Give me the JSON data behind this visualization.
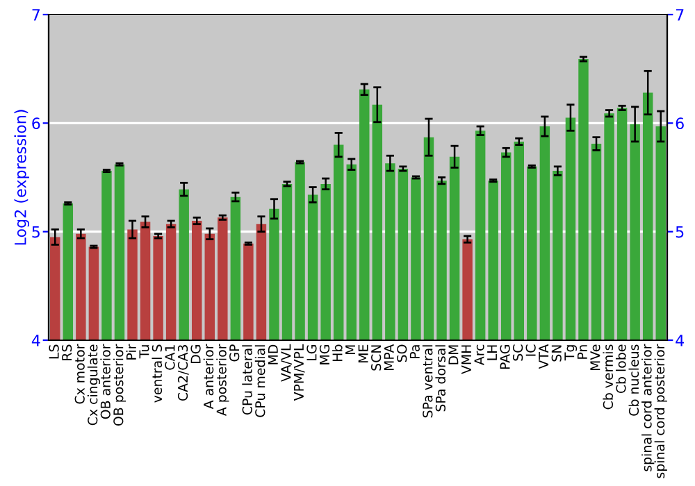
{
  "chart_data": {
    "type": "bar",
    "ylabel": "Log2 (expression)",
    "categories": [
      "LS",
      "RS",
      "Cx motor",
      "Cx cingulate",
      "OB anterior",
      "OB posterior",
      "Pir",
      "Tu",
      "ventral S",
      "CA1",
      "CA2/CA3",
      "DG",
      "A anterior",
      "A posterior",
      "GP",
      "CPu lateral",
      "CPu medial",
      "MD",
      "VA/VL",
      "VPM/VPL",
      "LG",
      "MG",
      "Hb",
      "M",
      "ME",
      "SCN",
      "MPA",
      "SO",
      "Pa",
      "SPa ventral",
      "SPa dorsal",
      "DM",
      "VMH",
      "Arc",
      "LH",
      "PAG",
      "SC",
      "IC",
      "VTA",
      "SN",
      "Tg",
      "Pn",
      "MVe",
      "Cb vermis",
      "Cb lobe",
      "Cb nucleus",
      "spinal cord anterior",
      "spinal cord posterior"
    ],
    "values": [
      4.95,
      5.26,
      4.98,
      4.86,
      5.56,
      5.62,
      5.02,
      5.09,
      4.96,
      5.07,
      5.39,
      5.1,
      4.98,
      5.13,
      5.32,
      4.89,
      5.07,
      5.21,
      5.44,
      5.64,
      5.34,
      5.44,
      5.8,
      5.62,
      6.31,
      6.17,
      5.63,
      5.58,
      5.5,
      5.87,
      5.47,
      5.69,
      4.93,
      5.93,
      5.47,
      5.73,
      5.83,
      5.6,
      5.97,
      5.56,
      6.05,
      6.59,
      5.81,
      6.09,
      6.14,
      5.99,
      6.28,
      5.97
    ],
    "errors": [
      0.07,
      0.01,
      0.04,
      0.01,
      0.01,
      0.01,
      0.08,
      0.05,
      0.02,
      0.03,
      0.06,
      0.03,
      0.05,
      0.02,
      0.04,
      0.01,
      0.07,
      0.09,
      0.02,
      0.01,
      0.07,
      0.05,
      0.11,
      0.05,
      0.05,
      0.16,
      0.07,
      0.02,
      0.01,
      0.17,
      0.03,
      0.1,
      0.03,
      0.04,
      0.01,
      0.04,
      0.03,
      0.01,
      0.09,
      0.04,
      0.12,
      0.02,
      0.06,
      0.03,
      0.02,
      0.16,
      0.2,
      0.14
    ],
    "colors": [
      "#b8403f",
      "#3aa83a",
      "#b8403f",
      "#b8403f",
      "#3aa83a",
      "#3aa83a",
      "#b8403f",
      "#b8403f",
      "#b8403f",
      "#b8403f",
      "#3aa83a",
      "#b8403f",
      "#b8403f",
      "#b8403f",
      "#3aa83a",
      "#b8403f",
      "#b8403f",
      "#3aa83a",
      "#3aa83a",
      "#3aa83a",
      "#3aa83a",
      "#3aa83a",
      "#3aa83a",
      "#3aa83a",
      "#3aa83a",
      "#3aa83a",
      "#3aa83a",
      "#3aa83a",
      "#3aa83a",
      "#3aa83a",
      "#3aa83a",
      "#3aa83a",
      "#b8403f",
      "#3aa83a",
      "#3aa83a",
      "#3aa83a",
      "#3aa83a",
      "#3aa83a",
      "#3aa83a",
      "#3aa83a",
      "#3aa83a",
      "#3aa83a",
      "#3aa83a",
      "#3aa83a",
      "#3aa83a",
      "#3aa83a",
      "#3aa83a",
      "#3aa83a"
    ],
    "ylim": [
      4,
      7
    ],
    "yticks": [
      4,
      5,
      6,
      7
    ],
    "y2lim": [
      4,
      7
    ],
    "y2ticks": [
      4,
      5,
      6,
      7
    ],
    "grid": "y"
  }
}
